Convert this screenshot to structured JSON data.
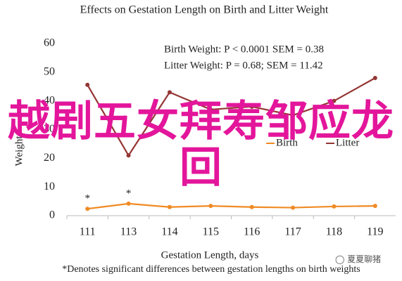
{
  "chart_data": {
    "type": "line",
    "title": "Effects on Gestation Length on Birth and Litter Weight",
    "annotations": [
      "Birth Weight: P < 0.0001 SEM = 0.38",
      "Litter Weight: P = 0.68; SEM = 11.42"
    ],
    "significance_marks": [
      "*",
      "*"
    ],
    "xlabel": "Gestation Length, days",
    "ylabel": "Weight",
    "footnote": "*Denotes significant differences between gestation lengths on birth weights",
    "categories": [
      "111",
      "113",
      "114",
      "115",
      "116",
      "117",
      "118",
      "119"
    ],
    "series": [
      {
        "name": "Birth",
        "color": "#f08a24",
        "values": [
          2.4,
          4.2,
          3.0,
          3.4,
          3.0,
          2.8,
          3.2,
          3.4
        ]
      },
      {
        "name": "Litter",
        "color": "#943634",
        "values": [
          45.6,
          21,
          43,
          37,
          38,
          35,
          40,
          48
        ]
      }
    ],
    "ylim": [
      0,
      60
    ],
    "yticks": [
      0,
      10,
      20,
      30,
      40,
      50,
      60
    ],
    "grid": false,
    "legend": "center"
  },
  "overlay_text": "越剧五女拜寿邹应龙回",
  "watermark": "夏夏聊猪"
}
